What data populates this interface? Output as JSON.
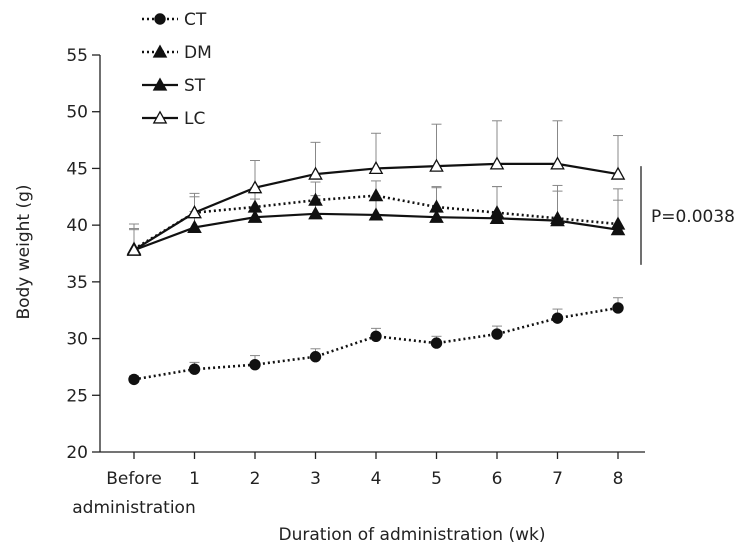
{
  "chart_data": {
    "type": "line",
    "xlabel": "Duration of administration (wk)",
    "ylabel": "Body weight (g)",
    "ylim": [
      20,
      55
    ],
    "yticks": [
      "20",
      "25",
      "30",
      "35",
      "40",
      "45",
      "50",
      "55"
    ],
    "categories": [
      "Before administration",
      "1",
      "2",
      "3",
      "4",
      "5",
      "6",
      "7",
      "8"
    ],
    "first_category_lines": [
      "Before",
      "administration"
    ],
    "series": [
      {
        "name": "CT",
        "line_style": "dotted",
        "marker": "filled-circle",
        "values": [
          26.4,
          27.3,
          27.7,
          28.4,
          30.2,
          29.6,
          30.4,
          31.8,
          32.7
        ],
        "errors": [
          0.3,
          0.6,
          0.8,
          0.7,
          0.7,
          0.6,
          0.7,
          0.8,
          0.9
        ]
      },
      {
        "name": "DM",
        "line_style": "dotted",
        "marker": "filled-triangle",
        "values": [
          37.9,
          41.1,
          41.6,
          42.2,
          42.6,
          41.6,
          41.1,
          40.6,
          40.1
        ],
        "errors": [
          1.8,
          1.4,
          1.7,
          1.6,
          1.3,
          1.8,
          2.3,
          2.9,
          3.1
        ]
      },
      {
        "name": "ST",
        "line_style": "solid",
        "marker": "filled-triangle",
        "values": [
          37.8,
          39.8,
          40.7,
          41.0,
          40.9,
          40.7,
          40.6,
          40.4,
          39.6
        ],
        "errors": [
          1.8,
          1.4,
          1.6,
          1.6,
          1.3,
          2.6,
          2.8,
          2.6,
          2.6
        ]
      },
      {
        "name": "LC",
        "line_style": "solid",
        "marker": "open-triangle",
        "values": [
          37.8,
          41.1,
          43.3,
          44.5,
          45.0,
          45.2,
          45.4,
          45.4,
          44.5
        ],
        "errors": [
          2.3,
          1.7,
          2.4,
          2.8,
          3.1,
          3.7,
          3.8,
          3.8,
          3.4
        ]
      }
    ],
    "annotation": "P=0.0038",
    "grid": false,
    "legend_position": "top-left"
  }
}
